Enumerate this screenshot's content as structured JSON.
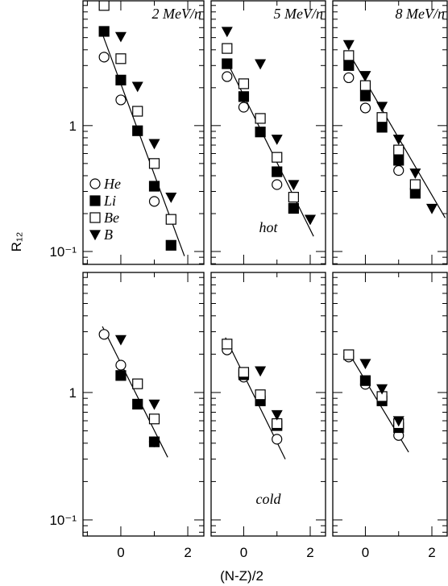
{
  "figure": {
    "x_label": "(N-Z)/2",
    "y_label": "R₁₂"
  },
  "chart_data": [
    {
      "type": "scatter",
      "log_y": true,
      "xlim": [
        -1.13,
        2.48
      ],
      "ylim": [
        0.079,
        9.8
      ],
      "xticks": [
        0,
        2
      ],
      "x_minor_ticks": [
        -1,
        1
      ],
      "xtick_labels": false,
      "yticks": [
        {
          "value": 0.1,
          "label": "10⁻¹"
        },
        1
      ],
      "y_minor_ticks": [
        0.08,
        0.09,
        0.2,
        0.3,
        0.4,
        0.5,
        0.6,
        0.7,
        0.8,
        0.9,
        2,
        3,
        4,
        5,
        6,
        7,
        8,
        9
      ],
      "ytick_labels": true,
      "label": "2 MeV/n",
      "legend": true,
      "series": [
        {
          "name": "He",
          "marker": "circle-open",
          "x": [
            -0.5,
            0,
            1
          ],
          "values": [
            3.5,
            1.6,
            0.25
          ]
        },
        {
          "name": "Li",
          "marker": "square-filled",
          "x": [
            -0.5,
            0,
            0.5,
            1,
            1.5
          ],
          "values": [
            5.6,
            2.3,
            0.91,
            0.33,
            0.112
          ]
        },
        {
          "name": "Be",
          "marker": "square-open",
          "x": [
            -0.5,
            0,
            0.5,
            1,
            1.5
          ],
          "values": [
            9.0,
            3.4,
            1.3,
            0.5,
            0.18
          ]
        },
        {
          "name": "B",
          "marker": "triangle-down-filled",
          "x": [
            0,
            0.5,
            1,
            1.5
          ],
          "values": [
            5.1,
            2.05,
            0.72,
            0.27
          ]
        }
      ],
      "fit": {
        "x": [
          -0.6,
          1.9
        ],
        "values": [
          5.8,
          0.092
        ]
      }
    },
    {
      "type": "scatter",
      "log_y": true,
      "xlim": [
        -0.98,
        2.46
      ],
      "ylim": [
        0.079,
        9.8
      ],
      "xticks": [
        0,
        2
      ],
      "x_minor_ticks": [
        1
      ],
      "xtick_labels": false,
      "yticks": [
        0.1,
        1
      ],
      "y_minor_ticks": [
        0.08,
        0.09,
        0.2,
        0.3,
        0.4,
        0.5,
        0.6,
        0.7,
        0.8,
        0.9,
        2,
        3,
        4,
        5,
        6,
        7,
        8,
        9
      ],
      "ytick_labels": false,
      "label": "5 MeV/n",
      "note": "hot",
      "series": [
        {
          "marker": "circle-open",
          "x": [
            -0.5,
            0,
            1
          ],
          "values": [
            2.45,
            1.4,
            0.34
          ]
        },
        {
          "marker": "square-filled",
          "x": [
            -0.5,
            0,
            0.5,
            1,
            1.5
          ],
          "values": [
            3.1,
            1.7,
            0.89,
            0.43,
            0.22
          ]
        },
        {
          "marker": "square-open",
          "x": [
            -0.5,
            0,
            0.5,
            1,
            1.5
          ],
          "values": [
            4.1,
            2.15,
            1.14,
            0.56,
            0.27
          ]
        },
        {
          "marker": "triangle-down-filled",
          "x": [
            -0.5,
            0.5,
            1,
            1.5,
            2
          ],
          "values": [
            5.6,
            3.1,
            0.78,
            0.34,
            0.18
          ]
        }
      ],
      "fit": {
        "x": [
          -0.5,
          2.1
        ],
        "values": [
          3.2,
          0.132
        ]
      }
    },
    {
      "type": "scatter",
      "log_y": true,
      "xlim": [
        -0.98,
        2.46
      ],
      "ylim": [
        0.079,
        9.8
      ],
      "xticks": [
        0,
        2
      ],
      "x_minor_ticks": [
        1
      ],
      "xtick_labels": false,
      "yticks": [
        0.1,
        1
      ],
      "y_minor_ticks": [
        0.08,
        0.09,
        0.2,
        0.3,
        0.4,
        0.5,
        0.6,
        0.7,
        0.8,
        0.9,
        2,
        3,
        4,
        5,
        6,
        7,
        8,
        9
      ],
      "ytick_labels": false,
      "label": "8 MeV/n",
      "series": [
        {
          "marker": "circle-open",
          "x": [
            -0.5,
            0,
            1
          ],
          "values": [
            2.4,
            1.38,
            0.44
          ]
        },
        {
          "marker": "square-filled",
          "x": [
            -0.5,
            0,
            0.5,
            1,
            1.5
          ],
          "values": [
            3.0,
            1.72,
            0.97,
            0.53,
            0.29
          ]
        },
        {
          "marker": "square-open",
          "x": [
            -0.5,
            0,
            0.5,
            1,
            1.5
          ],
          "values": [
            3.6,
            2.08,
            1.16,
            0.64,
            0.34
          ]
        },
        {
          "marker": "triangle-down-filled",
          "x": [
            -0.5,
            0,
            0.5,
            1,
            1.5,
            2
          ],
          "values": [
            4.4,
            2.5,
            1.42,
            0.78,
            0.42,
            0.22
          ]
        }
      ],
      "fit": {
        "x": [
          -0.5,
          2.4
        ],
        "values": [
          3.8,
          0.185
        ]
      }
    },
    {
      "type": "scatter",
      "log_y": true,
      "xlim": [
        -1.13,
        2.48
      ],
      "ylim": [
        0.0747,
        8.76
      ],
      "xticks": [
        0,
        2
      ],
      "x_minor_ticks": [
        -1,
        1
      ],
      "xtick_labels": true,
      "yticks": [
        {
          "value": 0.1,
          "label": "10⁻¹"
        },
        1
      ],
      "y_minor_ticks": [
        0.08,
        0.09,
        0.2,
        0.3,
        0.4,
        0.5,
        0.6,
        0.7,
        0.8,
        0.9,
        2,
        3,
        4,
        5,
        6,
        7,
        8
      ],
      "ytick_labels": true,
      "series": [
        {
          "marker": "circle-open",
          "x": [
            -0.5,
            0,
            1
          ],
          "values": [
            2.86,
            1.64,
            0.41
          ]
        },
        {
          "marker": "square-filled",
          "x": [
            0,
            0.5,
            1
          ],
          "values": [
            1.36,
            0.81,
            0.41
          ]
        },
        {
          "marker": "square-open",
          "x": [
            0.5,
            1
          ],
          "values": [
            1.17,
            0.62
          ]
        },
        {
          "marker": "triangle-down-filled",
          "x": [
            0,
            1
          ],
          "values": [
            2.6,
            0.81
          ]
        }
      ],
      "fit": {
        "x": [
          -0.55,
          1.4
        ],
        "values": [
          3.3,
          0.31
        ]
      }
    },
    {
      "type": "scatter",
      "log_y": true,
      "xlim": [
        -0.98,
        2.46
      ],
      "ylim": [
        0.0747,
        8.76
      ],
      "xticks": [
        0,
        2
      ],
      "x_minor_ticks": [
        1
      ],
      "xtick_labels": true,
      "yticks": [
        0.1,
        1
      ],
      "y_minor_ticks": [
        0.08,
        0.09,
        0.2,
        0.3,
        0.4,
        0.5,
        0.6,
        0.7,
        0.8,
        0.9,
        2,
        3,
        4,
        5,
        6,
        7,
        8
      ],
      "ytick_labels": false,
      "note": "cold",
      "series": [
        {
          "marker": "circle-open",
          "x": [
            -0.5,
            0,
            1
          ],
          "values": [
            2.16,
            1.32,
            0.43
          ]
        },
        {
          "marker": "square-filled",
          "x": [
            0,
            0.5,
            1
          ],
          "values": [
            1.38,
            0.86,
            0.55
          ]
        },
        {
          "marker": "square-open",
          "x": [
            -0.5,
            0,
            0.5,
            1
          ],
          "values": [
            2.4,
            1.44,
            0.96,
            0.57
          ]
        },
        {
          "marker": "triangle-down-filled",
          "x": [
            0.5,
            1
          ],
          "values": [
            1.48,
            0.67
          ]
        }
      ],
      "fit": {
        "x": [
          -0.55,
          1.25
        ],
        "values": [
          2.7,
          0.3
        ]
      }
    },
    {
      "type": "scatter",
      "log_y": true,
      "xlim": [
        -0.98,
        2.46
      ],
      "ylim": [
        0.0747,
        8.76
      ],
      "xticks": [
        0,
        2
      ],
      "x_minor_ticks": [
        1
      ],
      "xtick_labels": true,
      "yticks": [
        0.1,
        1
      ],
      "y_minor_ticks": [
        0.08,
        0.09,
        0.2,
        0.3,
        0.4,
        0.5,
        0.6,
        0.7,
        0.8,
        0.9,
        2,
        3,
        4,
        5,
        6,
        7,
        8
      ],
      "ytick_labels": false,
      "series": [
        {
          "marker": "circle-open",
          "x": [
            -0.5,
            0,
            1
          ],
          "values": [
            1.9,
            1.16,
            0.46
          ]
        },
        {
          "marker": "square-filled",
          "x": [
            0,
            0.5,
            1
          ],
          "values": [
            1.24,
            0.86,
            0.53
          ]
        },
        {
          "marker": "square-open",
          "x": [
            -0.5,
            0.5,
            1
          ],
          "values": [
            1.98,
            0.93,
            0.57
          ]
        },
        {
          "marker": "triangle-down-filled",
          "x": [
            0,
            0.5,
            1
          ],
          "values": [
            1.69,
            1.07,
            0.6
          ]
        }
      ],
      "fit": {
        "x": [
          -0.55,
          1.3
        ],
        "values": [
          2.15,
          0.34
        ]
      }
    }
  ]
}
